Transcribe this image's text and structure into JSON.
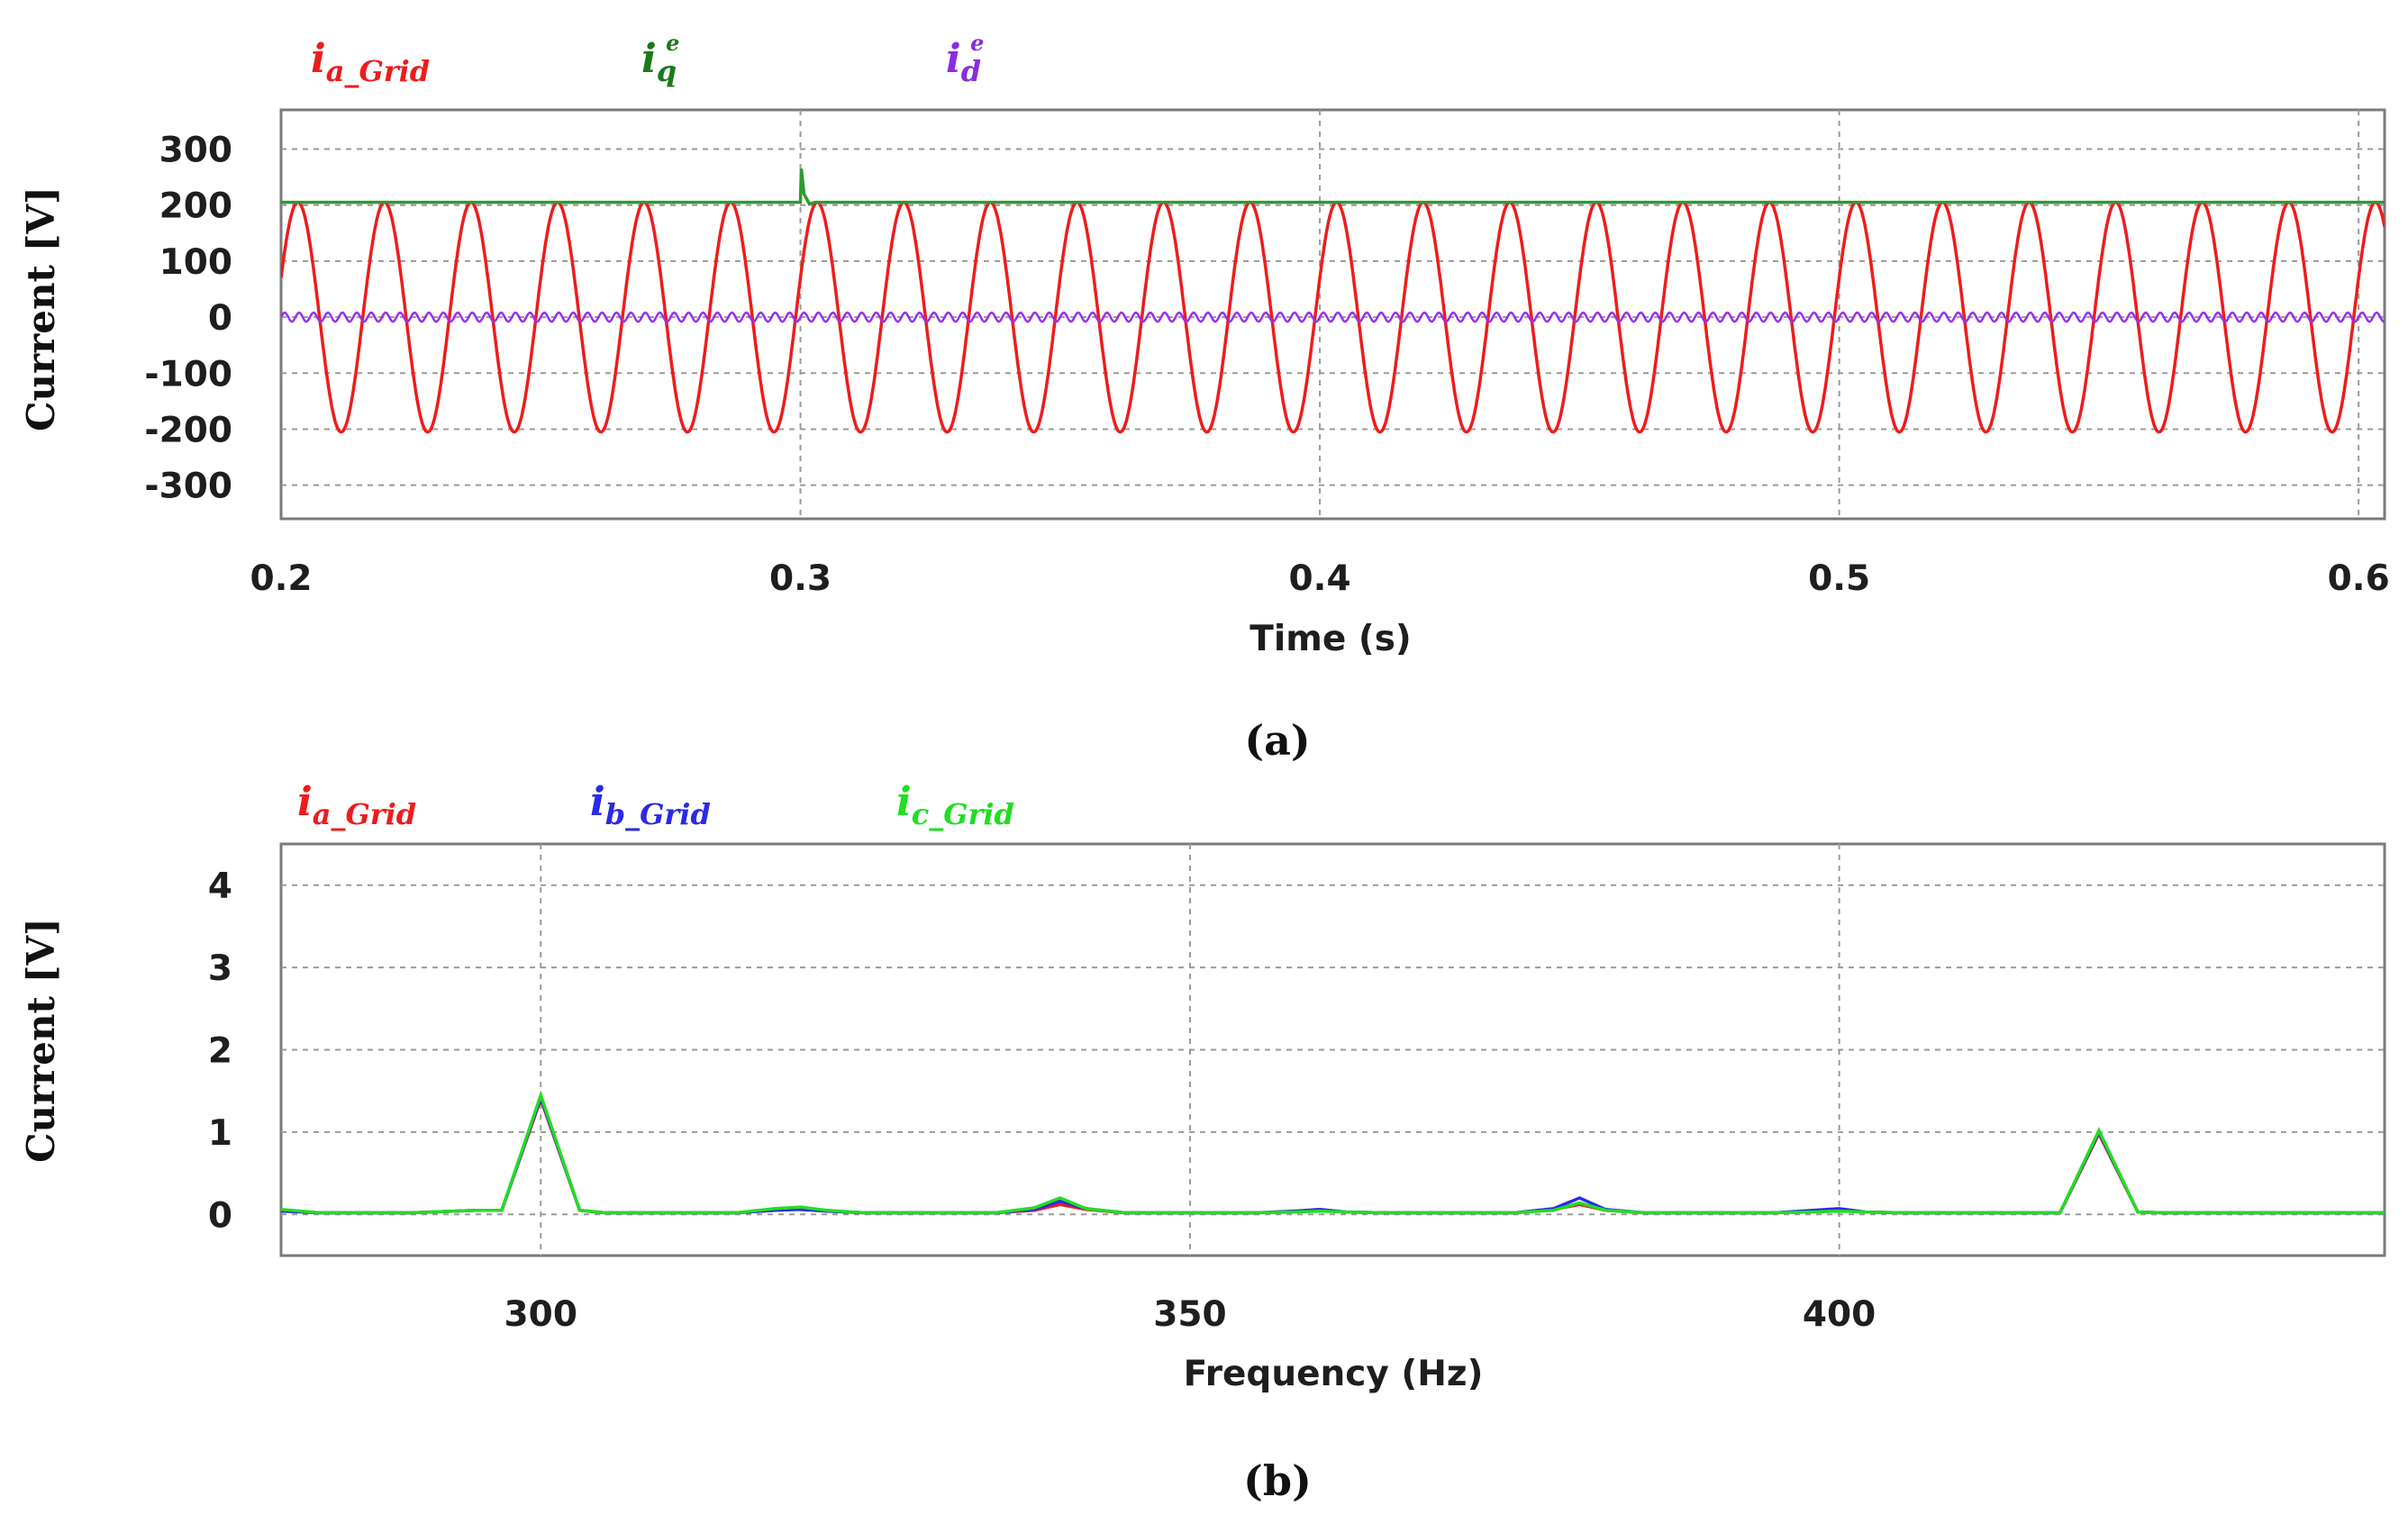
{
  "chart_data": [
    {
      "type": "line",
      "caption": "(a)",
      "xlabel": "Time (s)",
      "ylabel": "Current [V]",
      "xlim": [
        0.2,
        0.605
      ],
      "ylim": [
        -360,
        370
      ],
      "xticks": [
        0.2,
        0.3,
        0.4,
        0.5,
        0.6
      ],
      "xtick_labels": [
        "0.2",
        "0.3",
        "0.4",
        "0.5",
        "0.6"
      ],
      "yticks": [
        300,
        200,
        100,
        0,
        -100,
        -200,
        -300
      ],
      "ytick_labels": [
        "300",
        "200",
        "100",
        "0",
        "-100",
        "-200",
        "-300"
      ],
      "grid": true,
      "legend": [
        {
          "main": "i",
          "sub": "a_Grid",
          "sup": "",
          "color": "#ee1c1c"
        },
        {
          "main": "i",
          "sub": "q",
          "sup": "e",
          "color": "#1a7a1a"
        },
        {
          "main": "i",
          "sub": "d",
          "sup": "e",
          "color": "#8a2be2"
        }
      ],
      "series": [
        {
          "name": "ia_Grid",
          "color": "#ee1c1c",
          "kind": "sine",
          "amplitude": 205,
          "frequency_hz": 60,
          "x_start": 0.2,
          "x_end": 0.605
        },
        {
          "name": "iq_e",
          "color": "#2e9a2e",
          "kind": "constant",
          "value": 205,
          "x_start": 0.2,
          "x_end": 0.605,
          "transient_at": 0.3,
          "transient_peak": 265
        },
        {
          "name": "id_e",
          "color": "#9a30e8",
          "kind": "ripple",
          "amplitude": 8,
          "frequency_hz": 360,
          "x_start": 0.2,
          "x_end": 0.605
        }
      ]
    },
    {
      "type": "line",
      "caption": "(b)",
      "xlabel": "Frequency (Hz)",
      "ylabel": "Current [V]",
      "xlim": [
        280,
        442
      ],
      "ylim": [
        -0.5,
        4.5
      ],
      "xticks": [
        300,
        350,
        400
      ],
      "xtick_labels": [
        "300",
        "350",
        "400"
      ],
      "yticks": [
        4,
        3,
        2,
        1,
        0
      ],
      "ytick_labels": [
        "4",
        "3",
        "2",
        "1",
        "0"
      ],
      "grid": true,
      "legend": [
        {
          "main": "i",
          "sub": "a_Grid",
          "sup": "",
          "color": "#ee1c1c"
        },
        {
          "main": "i",
          "sub": "b_Grid",
          "sup": "",
          "color": "#2a2ae6"
        },
        {
          "main": "i",
          "sub": "c_Grid",
          "sup": "",
          "color": "#22dd22"
        }
      ],
      "series": [
        {
          "name": "ia_Grid",
          "color": "#ee1c1c",
          "x": [
            280,
            283,
            290,
            295,
            297,
            300,
            303,
            305,
            315,
            318,
            320,
            322,
            325,
            335,
            338,
            340,
            342,
            345,
            355,
            358,
            360,
            362,
            365,
            375,
            378,
            380,
            382,
            385,
            395,
            398,
            400,
            402,
            405,
            417,
            420,
            423,
            425,
            442
          ],
          "y": [
            0.05,
            0.02,
            0.02,
            0.05,
            0.05,
            1.4,
            0.05,
            0.02,
            0.02,
            0.05,
            0.07,
            0.04,
            0.02,
            0.02,
            0.05,
            0.12,
            0.06,
            0.02,
            0.02,
            0.03,
            0.05,
            0.03,
            0.02,
            0.02,
            0.06,
            0.12,
            0.05,
            0.02,
            0.02,
            0.04,
            0.05,
            0.03,
            0.02,
            0.02,
            0.98,
            0.03,
            0.02,
            0.02
          ]
        },
        {
          "name": "ib_Grid",
          "color": "#2a2ae6",
          "x": [
            280,
            283,
            290,
            295,
            297,
            300,
            303,
            305,
            315,
            318,
            320,
            322,
            325,
            335,
            338,
            340,
            342,
            345,
            355,
            358,
            360,
            362,
            365,
            375,
            378,
            380,
            382,
            385,
            395,
            398,
            400,
            402,
            405,
            417,
            420,
            423,
            425,
            442
          ],
          "y": [
            0.04,
            0.02,
            0.02,
            0.05,
            0.05,
            1.42,
            0.05,
            0.02,
            0.02,
            0.05,
            0.06,
            0.04,
            0.02,
            0.02,
            0.06,
            0.16,
            0.07,
            0.02,
            0.02,
            0.04,
            0.06,
            0.03,
            0.02,
            0.02,
            0.07,
            0.2,
            0.06,
            0.02,
            0.02,
            0.05,
            0.07,
            0.03,
            0.02,
            0.02,
            1.0,
            0.03,
            0.02,
            0.02
          ]
        },
        {
          "name": "ic_Grid",
          "color": "#22dd22",
          "x": [
            280,
            283,
            290,
            295,
            297,
            300,
            303,
            305,
            315,
            318,
            320,
            322,
            325,
            335,
            338,
            340,
            342,
            345,
            355,
            358,
            360,
            362,
            365,
            375,
            378,
            380,
            382,
            385,
            395,
            398,
            400,
            402,
            405,
            417,
            420,
            423,
            425,
            442
          ],
          "y": [
            0.06,
            0.02,
            0.02,
            0.05,
            0.05,
            1.45,
            0.05,
            0.02,
            0.02,
            0.07,
            0.09,
            0.05,
            0.02,
            0.02,
            0.08,
            0.2,
            0.07,
            0.02,
            0.02,
            0.03,
            0.04,
            0.03,
            0.02,
            0.02,
            0.05,
            0.14,
            0.05,
            0.02,
            0.02,
            0.03,
            0.04,
            0.03,
            0.02,
            0.02,
            1.02,
            0.03,
            0.02,
            0.02
          ]
        }
      ]
    }
  ]
}
